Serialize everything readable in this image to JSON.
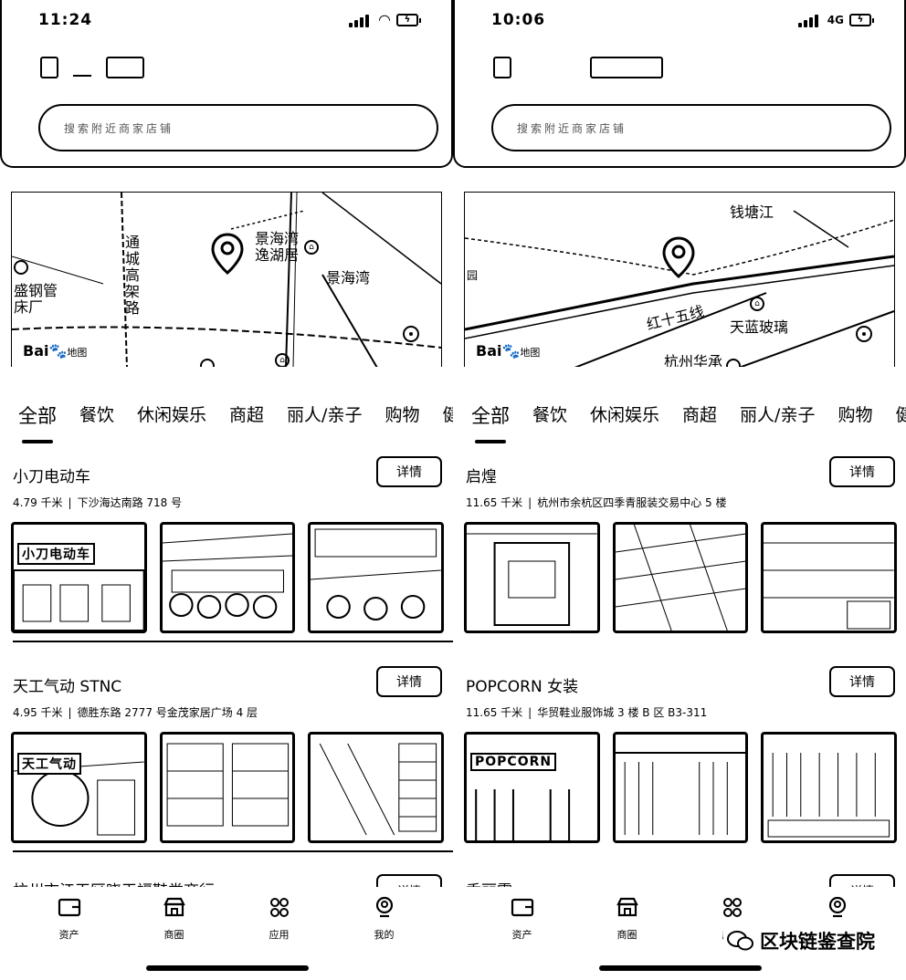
{
  "left": {
    "status": {
      "time": "11:24"
    },
    "search": {
      "placeholder": "搜索附近商家店铺"
    },
    "map": {
      "labels": [
        "通城高架路",
        "景海湾逸湖居",
        "景海湾",
        "盛钢管",
        "床厂"
      ],
      "logo": "Bai",
      "logo_sub": "地图"
    },
    "shops": [
      {
        "name": "小刀电动车",
        "distance": "4.79 千米",
        "address": "下沙海达南路 718 号",
        "detail": "详情",
        "sign": "小刀电动车"
      },
      {
        "name": "天工气动 STNC",
        "distance": "4.95 千米",
        "address": "德胜东路 2777 号金茂家居广场 4 层",
        "detail": "详情",
        "sign": "天工气动"
      }
    ],
    "peek": {
      "name": "杭州市江干区晓天福鞋类商行",
      "detail": "详情"
    }
  },
  "right": {
    "status": {
      "time": "10:06",
      "network": "4G"
    },
    "search": {
      "placeholder": "搜索附近商家店铺"
    },
    "map": {
      "labels": [
        "钱塘江",
        "红十五线",
        "天蓝玻璃",
        "杭州华承",
        "园"
      ],
      "logo": "Bai",
      "logo_sub": "地图"
    },
    "shops": [
      {
        "name": "启煌",
        "distance": "11.65 千米",
        "address": "杭州市余杭区四季青服装交易中心 5 楼",
        "detail": "详情",
        "sign": ""
      },
      {
        "name": "POPCORN 女装",
        "distance": "11.65 千米",
        "address": "华贸鞋业服饰城 3 楼 B 区 B3-311",
        "detail": "详情",
        "sign": "POPCORN"
      }
    ],
    "peek": {
      "name": "香丽霞",
      "detail": "详情"
    }
  },
  "tabs": [
    "全部",
    "餐饮",
    "休闲娱乐",
    "商超",
    "丽人/亲子",
    "购物",
    "健"
  ],
  "nav": [
    "资产",
    "商圈",
    "应用",
    "我的"
  ],
  "watermark": "区块链鉴查院",
  "colors": {
    "foreground": "#000000",
    "background": "#ffffff"
  },
  "icons": {
    "status": [
      "signal-icon",
      "wifi-icon",
      "battery-charging-icon"
    ],
    "nav": [
      "wallet-icon",
      "store-icon",
      "apps-icon",
      "profile-icon"
    ],
    "map": [
      "location-pin-icon",
      "poi-icon",
      "locate-icon"
    ]
  }
}
